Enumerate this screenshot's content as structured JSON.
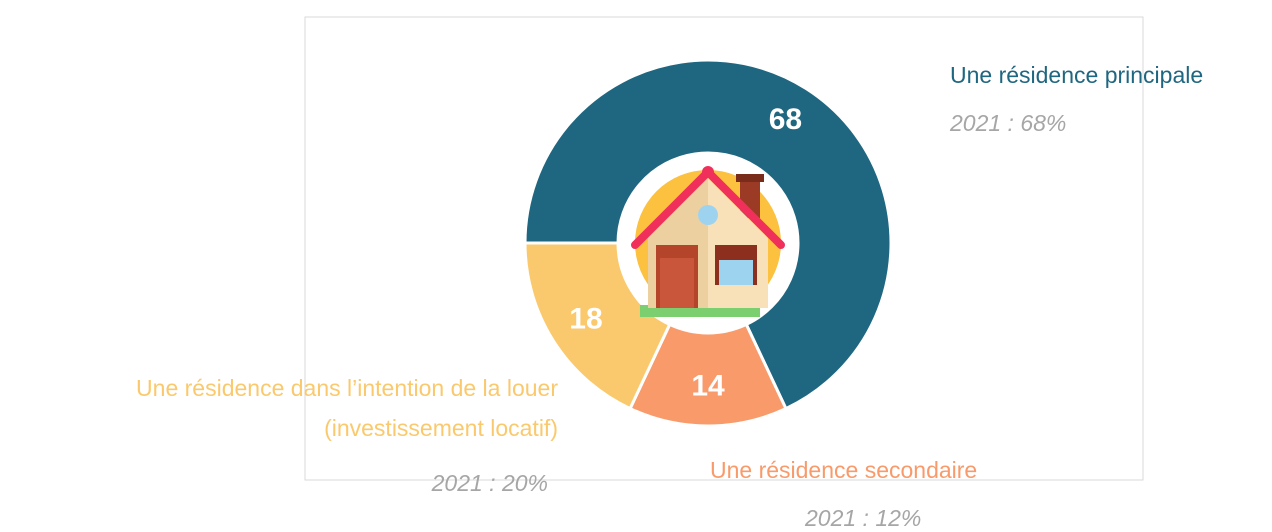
{
  "chart_data": {
    "type": "donut",
    "categories": [
      "Une résidence principale",
      "Une résidence secondaire",
      "Une résidence dans l’intention de la louer (investissement locatif)"
    ],
    "values": [
      68,
      14,
      18
    ],
    "colors": [
      "#1f6680",
      "#f99a6a",
      "#fbc96d"
    ],
    "annotations": [
      "2021 : 68%",
      "2021 : 12%",
      "2021 : 20%"
    ]
  }
}
